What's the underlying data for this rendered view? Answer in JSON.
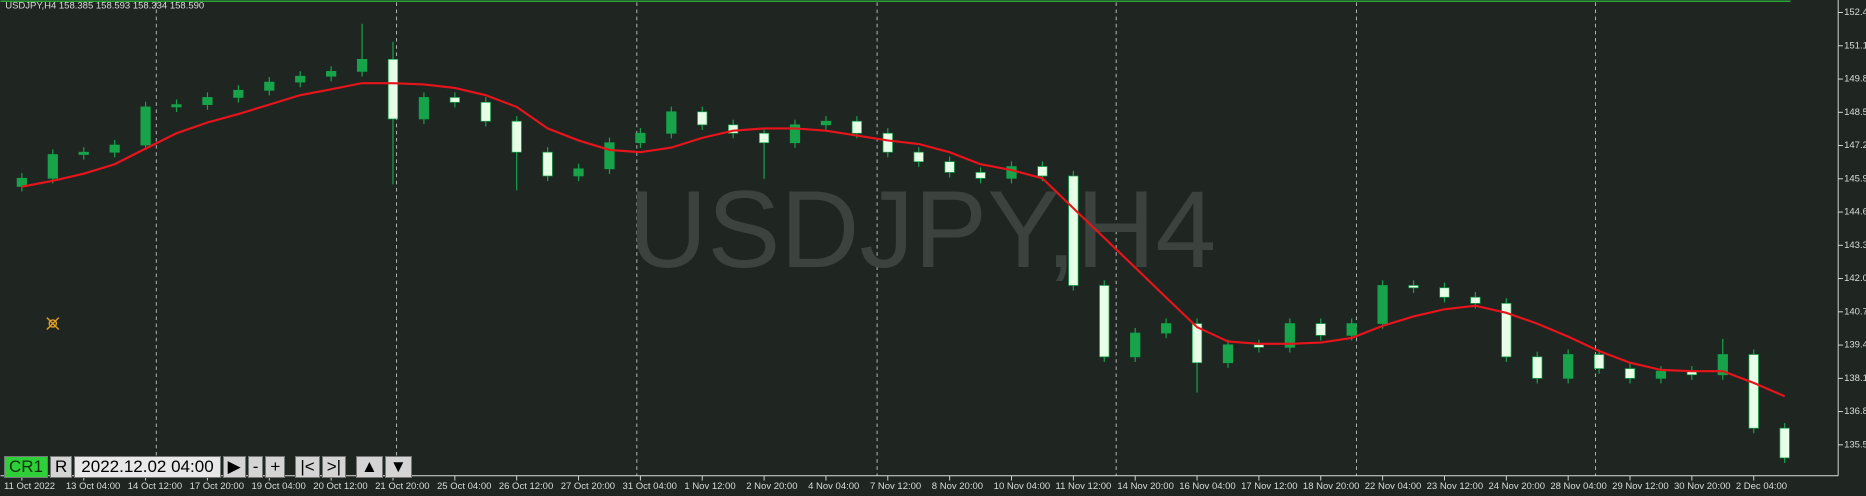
{
  "chart_data": {
    "type": "candlestick",
    "title": "USDJPY,H4  158.385 158.593 158.334 158.590",
    "watermark": "USDJPY,H4",
    "up_color": "#16a34a",
    "down_color": "#e6ffe6",
    "categories": [
      "11 Oct 2022",
      null,
      "13 Oct 04:00",
      null,
      "14 Oct 12:00",
      null,
      "17 Oct 20:00",
      null,
      "19 Oct 04:00",
      null,
      "20 Oct 12:00",
      null,
      "21 Oct 20:00",
      null,
      "25 Oct 04:00",
      null,
      "26 Oct 12:00",
      null,
      "27 Oct 20:00",
      null,
      "31 Oct 04:00",
      null,
      "1 Nov 12:00",
      null,
      "2 Nov 20:00",
      null,
      "4 Nov 04:00",
      null,
      "7 Nov 12:00",
      null,
      "8 Nov 20:00",
      null,
      "10 Nov 04:00",
      null,
      "11 Nov 12:00",
      null,
      "14 Nov 20:00",
      null,
      "16 Nov 04:00",
      null,
      "17 Nov 12:00",
      null,
      "18 Nov 20:00",
      null,
      "22 Nov 04:00",
      null,
      "23 Nov 12:00",
      null,
      "24 Nov 20:00",
      null,
      "28 Nov 04:00",
      null,
      "29 Nov 12:00",
      null,
      "30 Nov 20:00",
      null,
      "2 Dec 04:00",
      null
    ],
    "open": [
      145.6,
      145.92,
      146.85,
      146.94,
      147.22,
      148.71,
      148.8,
      149.08,
      149.36,
      149.68,
      149.91,
      150.1,
      150.57,
      148.24,
      149.08,
      148.89,
      148.15,
      146.94,
      146.01,
      146.29,
      147.31,
      147.68,
      148.52,
      148.01,
      147.68,
      147.31,
      148.01,
      148.15,
      147.68,
      146.94,
      146.57,
      146.15,
      145.92,
      146.38,
      146.01,
      141.73,
      138.94,
      139.87,
      140.24,
      138.71,
      139.41,
      139.31,
      140.24,
      139.78,
      140.24,
      141.73,
      141.64,
      141.27,
      141.03,
      138.94,
      138.1,
      139.03,
      138.48,
      138.1,
      138.38,
      138.24,
      139.03,
      136.15
    ],
    "high": [
      146.12,
      147.05,
      147.14,
      147.42,
      148.91,
      149.0,
      149.28,
      149.56,
      149.88,
      150.11,
      150.3,
      151.96,
      151.26,
      149.28,
      149.28,
      149.09,
      148.35,
      147.14,
      146.49,
      147.51,
      147.88,
      148.72,
      148.72,
      148.21,
      147.88,
      148.21,
      148.35,
      148.35,
      147.88,
      147.14,
      146.77,
      146.35,
      146.58,
      146.58,
      146.21,
      141.93,
      140.07,
      140.44,
      140.44,
      139.61,
      139.61,
      140.44,
      140.44,
      140.44,
      141.93,
      141.93,
      141.84,
      141.47,
      141.23,
      139.14,
      139.23,
      139.23,
      138.68,
      138.58,
      138.58,
      139.64,
      139.23,
      136.35
    ],
    "low": [
      145.4,
      145.72,
      146.65,
      146.74,
      147.02,
      148.51,
      148.6,
      148.88,
      149.16,
      149.48,
      149.71,
      149.9,
      145.68,
      148.04,
      148.69,
      147.95,
      145.45,
      145.81,
      145.81,
      146.09,
      147.11,
      147.48,
      147.81,
      147.48,
      145.9,
      147.11,
      147.81,
      147.48,
      146.74,
      146.37,
      145.95,
      145.72,
      145.72,
      145.81,
      141.53,
      138.74,
      138.74,
      139.67,
      137.54,
      138.51,
      139.11,
      139.11,
      139.58,
      139.58,
      140.04,
      141.44,
      141.07,
      140.83,
      138.74,
      137.9,
      137.9,
      138.28,
      137.9,
      137.9,
      138.04,
      138.04,
      135.95,
      134.79
    ],
    "close": [
      145.92,
      146.85,
      146.94,
      147.22,
      148.71,
      148.8,
      149.08,
      149.36,
      149.68,
      149.91,
      150.1,
      150.57,
      148.24,
      149.08,
      148.89,
      148.15,
      146.94,
      146.01,
      146.29,
      147.31,
      147.68,
      148.52,
      148.01,
      147.68,
      147.31,
      148.01,
      148.15,
      147.68,
      146.94,
      146.57,
      146.15,
      145.92,
      146.38,
      146.01,
      141.73,
      138.94,
      139.87,
      140.24,
      138.71,
      139.41,
      139.31,
      140.24,
      139.78,
      140.24,
      141.73,
      141.64,
      141.27,
      141.03,
      138.94,
      138.1,
      139.03,
      138.48,
      138.1,
      138.38,
      138.24,
      139.03,
      136.15,
      134.99
    ],
    "ma": {
      "color": "#e8141c",
      "values": [
        145.59,
        145.82,
        146.1,
        146.47,
        147.08,
        147.68,
        148.1,
        148.43,
        148.8,
        149.17,
        149.4,
        149.64,
        149.64,
        149.59,
        149.45,
        149.17,
        148.71,
        147.87,
        147.4,
        147.03,
        146.94,
        147.12,
        147.5,
        147.78,
        147.87,
        147.87,
        147.78,
        147.59,
        147.4,
        147.26,
        146.94,
        146.47,
        146.24,
        145.92,
        144.75,
        143.59,
        142.43,
        141.26,
        140.1,
        139.54,
        139.45,
        139.45,
        139.5,
        139.68,
        140.15,
        140.52,
        140.8,
        140.94,
        140.66,
        140.24,
        139.73,
        139.17,
        138.71,
        138.43,
        138.38,
        138.38,
        137.92,
        137.4
      ]
    },
    "ylim": [
      134.29,
      152.89
    ],
    "yticks": [
      152.4,
      151.1,
      149.8,
      148.5,
      147.2,
      145.9,
      144.6,
      143.3,
      {
        "value": 142,
        "label": "142.0"
      },
      140.7,
      139.4,
      138.1,
      136.8,
      135.5
    ]
  },
  "toolbar": {
    "profile": "CR1",
    "reset": "R",
    "date": "2022.12.02 04:00",
    "play": "▶",
    "minus": "-",
    "plus": "+",
    "first": "|<",
    "last": ">|",
    "up": "▲",
    "down": "▼"
  }
}
